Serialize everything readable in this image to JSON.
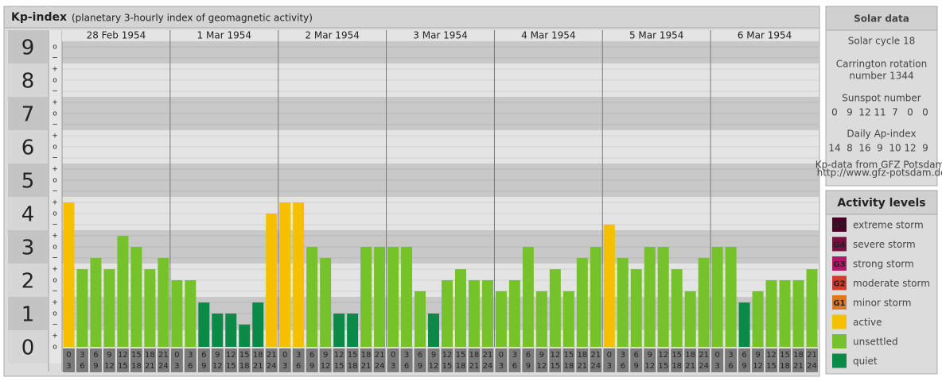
{
  "chart_data": {
    "type": "bar",
    "title": "Kp-index",
    "subtitle": "(planetary 3-hourly index of geomagnetic activity)",
    "ylim": [
      0,
      9
    ],
    "yticks": [
      0,
      1,
      2,
      3,
      4,
      5,
      6,
      7,
      8,
      9
    ],
    "minor_labels": {
      "minus": "−",
      "mid": "o",
      "plus": "+"
    },
    "hour_start": [
      "0",
      "3",
      "6",
      "9",
      "12",
      "15",
      "18",
      "21"
    ],
    "hour_end": [
      "3",
      "6",
      "9",
      "12",
      "15",
      "18",
      "21",
      "24"
    ],
    "days": [
      {
        "label": "28 Feb 1954",
        "values": [
          4.33,
          2.33,
          2.67,
          2.33,
          3.33,
          3,
          2.33,
          2.67
        ],
        "colors": [
          "#f5c000",
          "#76c22a",
          "#76c22a",
          "#76c22a",
          "#76c22a",
          "#76c22a",
          "#76c22a",
          "#76c22a"
        ]
      },
      {
        "label": "1 Mar 1954",
        "values": [
          2,
          2,
          1.33,
          1,
          1,
          0.67,
          1.33,
          4
        ],
        "colors": [
          "#76c22a",
          "#76c22a",
          "#0b8a47",
          "#0b8a47",
          "#0b8a47",
          "#0b8a47",
          "#0b8a47",
          "#f5c000"
        ]
      },
      {
        "label": "2 Mar 1954",
        "values": [
          4.33,
          4.33,
          3,
          2.67,
          1,
          1,
          3,
          3
        ],
        "colors": [
          "#f5c000",
          "#f5c000",
          "#76c22a",
          "#76c22a",
          "#0b8a47",
          "#0b8a47",
          "#76c22a",
          "#76c22a"
        ]
      },
      {
        "label": "3 Mar 1954",
        "values": [
          3,
          3,
          1.67,
          1,
          2,
          2.33,
          2,
          2
        ],
        "colors": [
          "#76c22a",
          "#76c22a",
          "#76c22a",
          "#0b8a47",
          "#76c22a",
          "#76c22a",
          "#76c22a",
          "#76c22a"
        ]
      },
      {
        "label": "4 Mar 1954",
        "values": [
          1.67,
          2,
          3,
          1.67,
          2.33,
          1.67,
          2.67,
          3
        ],
        "colors": [
          "#76c22a",
          "#76c22a",
          "#76c22a",
          "#76c22a",
          "#76c22a",
          "#76c22a",
          "#76c22a",
          "#76c22a"
        ]
      },
      {
        "label": "5 Mar 1954",
        "values": [
          3.67,
          2.67,
          2.33,
          3,
          3,
          2.33,
          1.67,
          2.67
        ],
        "colors": [
          "#f5c000",
          "#76c22a",
          "#76c22a",
          "#76c22a",
          "#76c22a",
          "#76c22a",
          "#76c22a",
          "#76c22a"
        ]
      },
      {
        "label": "6 Mar 1954",
        "values": [
          3,
          3,
          1.33,
          1.67,
          2,
          2,
          2,
          2.33
        ],
        "colors": [
          "#76c22a",
          "#76c22a",
          "#0b8a47",
          "#76c22a",
          "#76c22a",
          "#76c22a",
          "#76c22a",
          "#76c22a"
        ]
      }
    ],
    "solar": {
      "title": "Solar data",
      "cycle": "Solar cycle 18",
      "carrington_1": "Carrington rotation",
      "carrington_2": "number 1344",
      "sunspot_title": "Sunspot number",
      "sunspot": [
        "0",
        "9",
        "12",
        "11",
        "7",
        "0",
        "0"
      ],
      "ap_title": "Daily Ap-index",
      "ap": [
        "14",
        "8",
        "16",
        "9",
        "10",
        "12",
        "9"
      ],
      "source_1": "Kp-data from GFZ Potsdam:",
      "source_2": "http://www.gfz-potsdam.de"
    },
    "legend": {
      "title": "Activity levels",
      "items": [
        {
          "badge": "G5",
          "label": "extreme storm",
          "color": "#4d0026"
        },
        {
          "badge": "G4",
          "label": "severe storm",
          "color": "#7a1040"
        },
        {
          "badge": "G3",
          "label": "strong storm",
          "color": "#b0186a"
        },
        {
          "badge": "G2",
          "label": "moderate storm",
          "color": "#d43a2a"
        },
        {
          "badge": "G1",
          "label": "minor storm",
          "color": "#e07820"
        },
        {
          "label": "active",
          "color": "#f5c000"
        },
        {
          "label": "unsettled",
          "color": "#76c22a"
        },
        {
          "label": "quiet",
          "color": "#0b8a47"
        }
      ]
    }
  }
}
